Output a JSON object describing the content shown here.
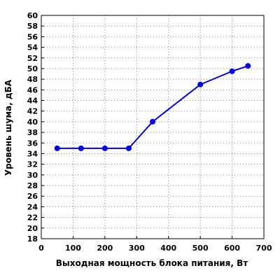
{
  "chart_data": {
    "type": "line",
    "xlabel": "Выходная мощность блока питания, Вт",
    "ylabel": "Уровень шума, дБА",
    "xlim": [
      0,
      700
    ],
    "ylim": [
      18,
      60
    ],
    "x_ticks": [
      0,
      100,
      200,
      300,
      400,
      500,
      600,
      700
    ],
    "y_ticks": [
      18,
      20,
      22,
      24,
      26,
      28,
      30,
      32,
      34,
      36,
      38,
      40,
      42,
      44,
      46,
      48,
      50,
      52,
      54,
      56,
      58,
      60
    ],
    "grid": true,
    "series": [
      {
        "x": [
          50,
          125,
          200,
          275,
          350,
          500,
          600,
          650
        ],
        "y": [
          35,
          35,
          35,
          35,
          40,
          47,
          49.5,
          50.5
        ]
      }
    ],
    "colors": {
      "series": "#0000ee",
      "grid": "#808080",
      "axis": "#000000"
    }
  }
}
